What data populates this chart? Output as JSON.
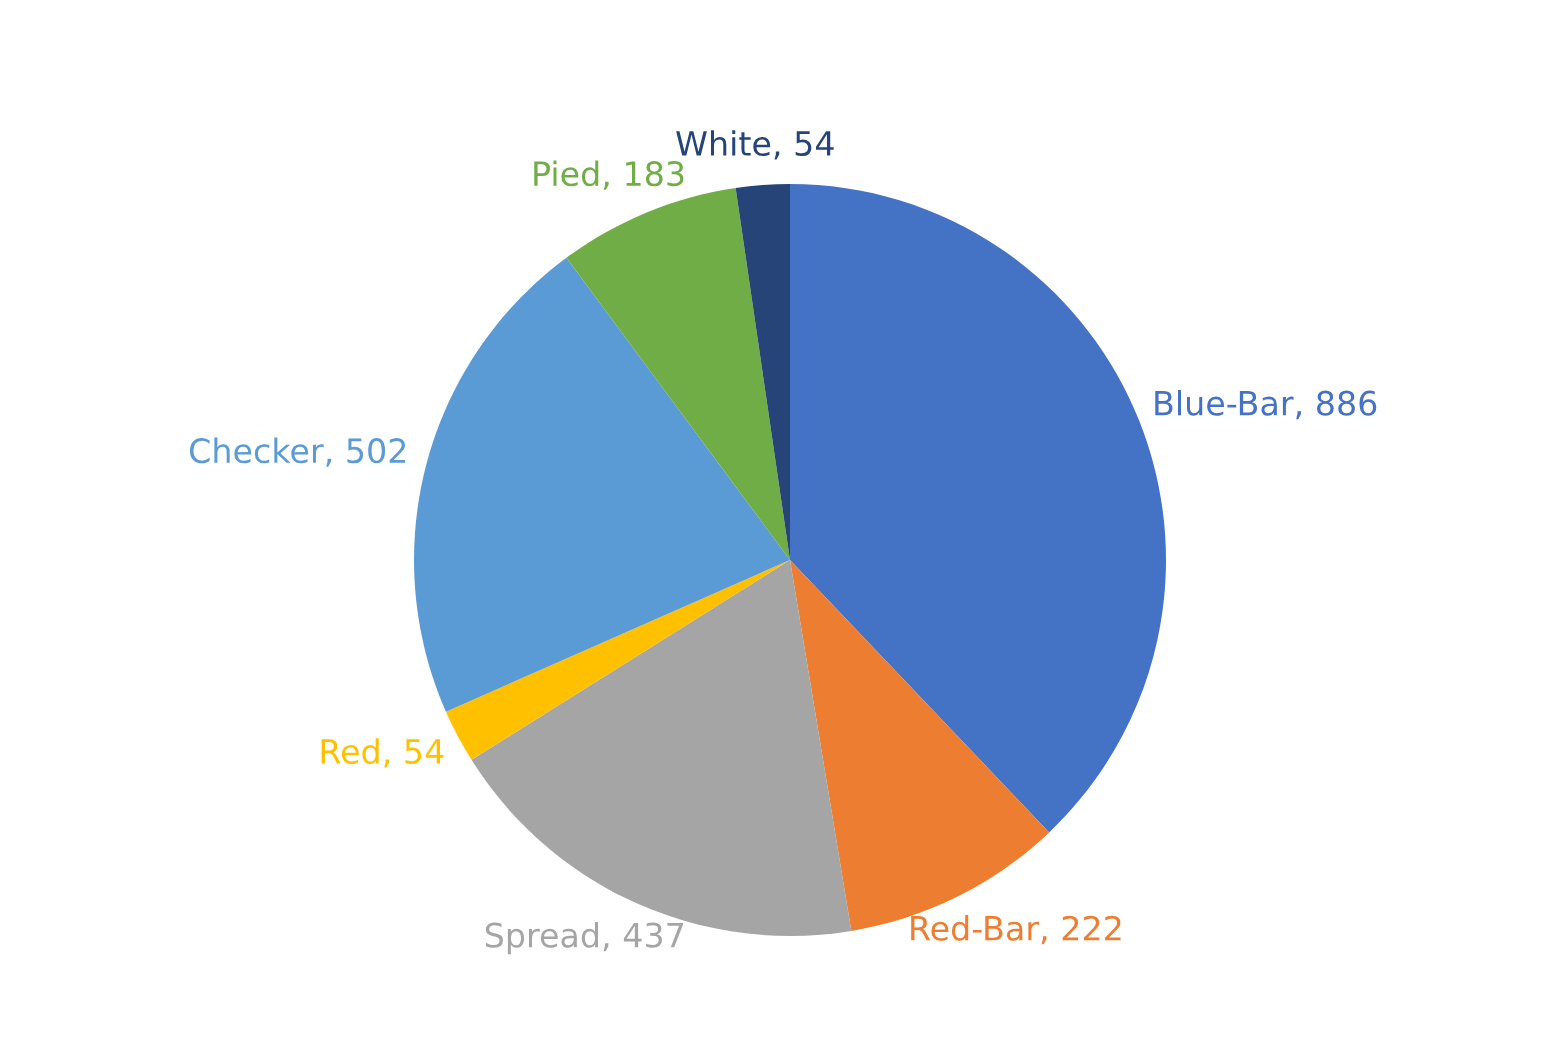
{
  "chart_data": {
    "type": "pie",
    "categories": [
      "Blue-Bar",
      "Red-Bar",
      "Spread",
      "Red",
      "Checker",
      "Pied",
      "White"
    ],
    "values": [
      886,
      222,
      437,
      54,
      502,
      183,
      54
    ],
    "colors": [
      "#4472c4",
      "#ed7d31",
      "#a5a5a5",
      "#ffc000",
      "#5b9bd5",
      "#70ad47",
      "#264478"
    ],
    "value_labels": [
      ", 886",
      ", 222",
      ", 437",
      ", 54",
      ", 502",
      ", 183",
      ", 54"
    ],
    "legend": false
  }
}
